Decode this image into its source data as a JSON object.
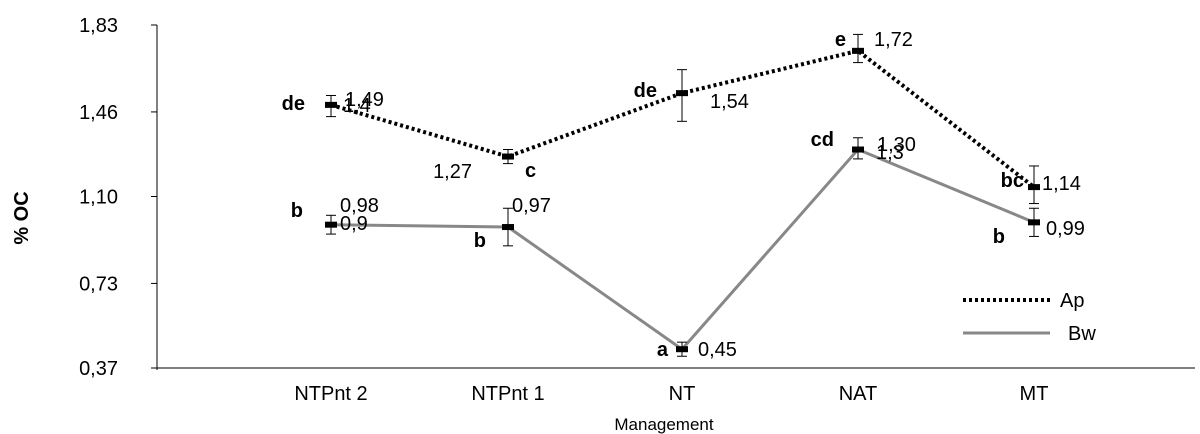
{
  "chart_data": {
    "type": "line",
    "ylabel": "% OC",
    "xlabel": "Management",
    "categories": [
      "NTPnt 2",
      "NTPnt 1",
      "NT",
      "NAT",
      "MT"
    ],
    "ylim": [
      0.37,
      1.83
    ],
    "yticks": [
      "0,37",
      "0,73",
      "1,10",
      "1,46",
      "1,83"
    ],
    "ytick_values": [
      0.37,
      0.73,
      1.1,
      1.46,
      1.83
    ],
    "legend_position": "bottom-right",
    "series": [
      {
        "name": "Ap",
        "style": "dotted",
        "color": "#000000",
        "values": [
          1.49,
          1.27,
          1.54,
          1.72,
          1.14
        ],
        "error_low": [
          1.44,
          1.24,
          1.42,
          1.67,
          1.07
        ],
        "error_high": [
          1.53,
          1.3,
          1.64,
          1.79,
          1.23
        ],
        "labels": [
          "1,49",
          "1,27",
          "1,54",
          "1,72",
          "1,14"
        ],
        "letters": [
          "de",
          "c",
          "de",
          "e",
          "bc"
        ]
      },
      {
        "name": "Bw",
        "style": "solid",
        "color": "#888888",
        "values": [
          0.98,
          0.97,
          0.45,
          1.3,
          0.99
        ],
        "error_low": [
          0.94,
          0.89,
          0.42,
          1.26,
          0.93
        ],
        "error_high": [
          1.02,
          1.05,
          0.48,
          1.35,
          1.05
        ],
        "labels": [
          "0,98",
          "0,97",
          "0,45",
          "1,30",
          "0,99"
        ],
        "letters": [
          "b",
          "b",
          "a",
          "cd",
          "b"
        ]
      }
    ],
    "overlapped_labels": [
      "1,4",
      "0,9",
      "1,3"
    ]
  }
}
